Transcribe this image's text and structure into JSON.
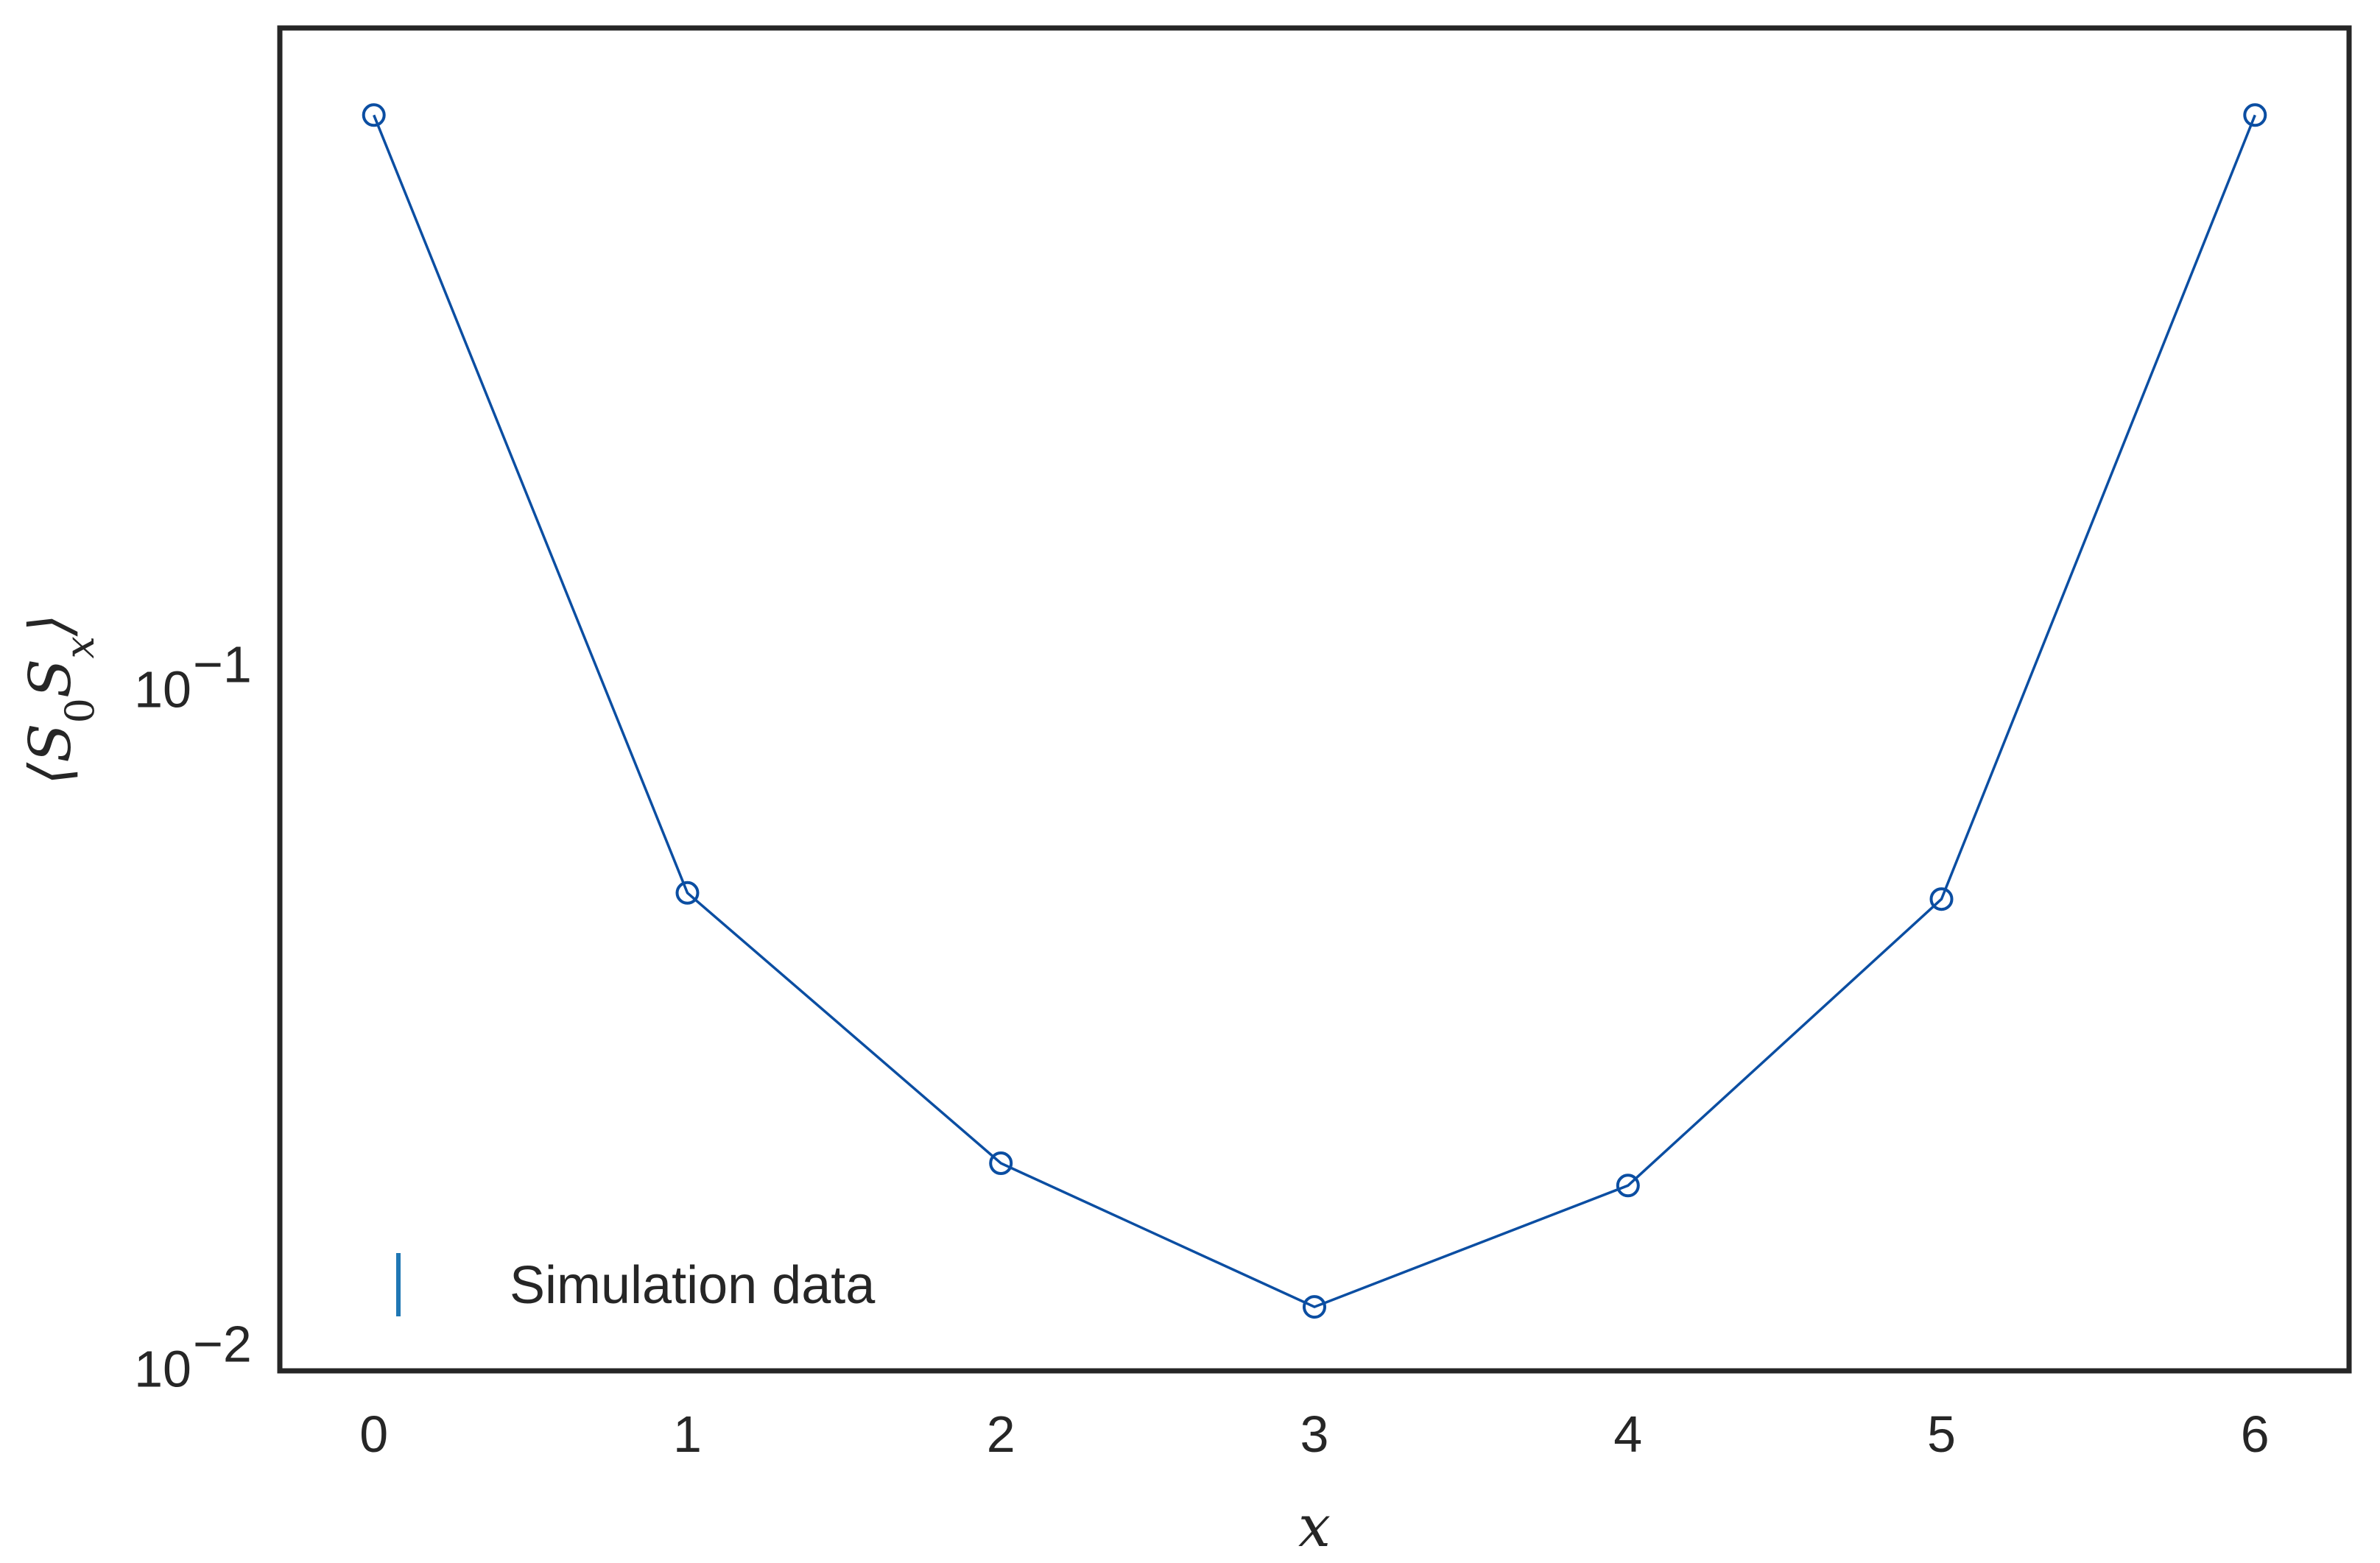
{
  "chart_data": {
    "type": "line",
    "x": [
      0,
      1,
      2,
      3,
      4,
      5,
      6
    ],
    "series": [
      {
        "name": "Simulation data",
        "values": [
          0.67,
          0.048,
          0.0192,
          0.0118,
          0.0178,
          0.047,
          0.67
        ],
        "color": "#0b4ea2",
        "marker": "open-circle"
      }
    ],
    "xlabel": "x",
    "ylabel": "⟨S₀Sₓ⟩",
    "ylabel_parts": {
      "open": "⟨",
      "s1": "S",
      "sub1": "0",
      "s2": "S",
      "sub2": "x",
      "close": "⟩"
    },
    "xlim": [
      -0.3,
      6.3
    ],
    "ylim": [
      0.0095,
      0.9
    ],
    "yscale": "log",
    "xticks": [
      "0",
      "1",
      "2",
      "3",
      "4",
      "5",
      "6"
    ],
    "yticks": [
      {
        "value": 0.01,
        "base": "10",
        "exp": "−2"
      },
      {
        "value": 0.1,
        "base": "10",
        "exp": "−1"
      }
    ],
    "grid": false,
    "legend": {
      "position": "lower-left",
      "handle_color": "#1f77b4"
    }
  }
}
